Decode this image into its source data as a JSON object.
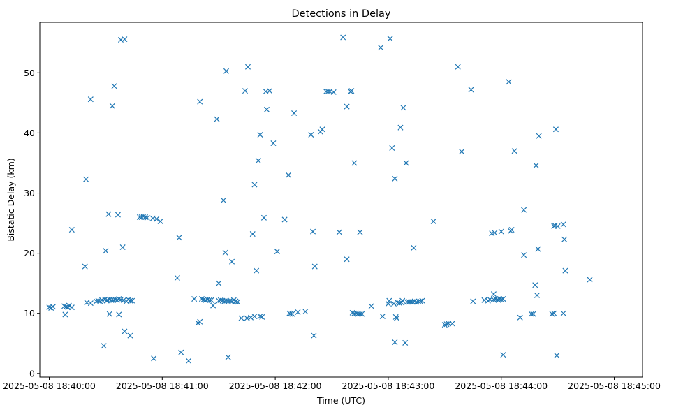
{
  "chart_data": {
    "type": "scatter",
    "title": "Detections in Delay",
    "xlabel": "Time (UTC)",
    "ylabel": "Bistatic Delay (km)",
    "marker": "x",
    "color": "#1f77b4",
    "grid": false,
    "x_unit": "seconds after 2025-05-08 18:40:00 UTC",
    "xlim": [
      -5,
      315
    ],
    "ylim": [
      -0.6,
      58.4
    ],
    "x_ticks": [
      {
        "value": 0,
        "label": "2025-05-08 18:40:00"
      },
      {
        "value": 60,
        "label": "2025-05-08 18:41:00"
      },
      {
        "value": 120,
        "label": "2025-05-08 18:42:00"
      },
      {
        "value": 180,
        "label": "2025-05-08 18:43:00"
      },
      {
        "value": 240,
        "label": "2025-05-08 18:44:00"
      },
      {
        "value": 300,
        "label": "2025-05-08 18:45:00"
      }
    ],
    "y_ticks": [
      {
        "value": 0,
        "label": "0"
      },
      {
        "value": 10,
        "label": "10"
      },
      {
        "value": 20,
        "label": "20"
      },
      {
        "value": 30,
        "label": "30"
      },
      {
        "value": 40,
        "label": "40"
      },
      {
        "value": 50,
        "label": "50"
      }
    ],
    "points": [
      [
        0,
        11.0
      ],
      [
        1,
        10.9
      ],
      [
        2,
        11.1
      ],
      [
        8,
        11.2
      ],
      [
        8.5,
        9.8
      ],
      [
        9,
        11.1
      ],
      [
        10,
        11.0
      ],
      [
        10.5,
        11.3
      ],
      [
        12,
        11.0
      ],
      [
        12,
        23.9
      ],
      [
        19,
        17.8
      ],
      [
        19.5,
        32.3
      ],
      [
        20,
        11.8
      ],
      [
        22,
        11.7
      ],
      [
        22,
        45.6
      ],
      [
        25,
        12.0
      ],
      [
        26,
        12.1
      ],
      [
        27,
        12.0
      ],
      [
        28,
        12.2
      ],
      [
        29,
        4.6
      ],
      [
        29.5,
        12.3
      ],
      [
        30,
        20.4
      ],
      [
        30.5,
        12.1
      ],
      [
        31,
        12.2
      ],
      [
        31.5,
        26.5
      ],
      [
        32,
        9.9
      ],
      [
        32,
        12.3
      ],
      [
        33,
        12.2
      ],
      [
        33.5,
        44.5
      ],
      [
        34,
        12.2
      ],
      [
        34.5,
        47.8
      ],
      [
        35,
        12.3
      ],
      [
        36,
        12.2
      ],
      [
        36.5,
        26.4
      ],
      [
        37,
        9.8
      ],
      [
        37,
        12.4
      ],
      [
        38,
        12.3
      ],
      [
        38,
        55.5
      ],
      [
        39,
        21.0
      ],
      [
        39.5,
        12.2
      ],
      [
        40,
        7.0
      ],
      [
        40,
        55.6
      ],
      [
        41,
        12.0
      ],
      [
        42,
        12.3
      ],
      [
        43,
        12.1
      ],
      [
        43,
        6.3
      ],
      [
        44,
        12.1
      ],
      [
        48,
        26.0
      ],
      [
        49,
        26.0
      ],
      [
        50,
        26.1
      ],
      [
        51,
        26.0
      ],
      [
        52,
        25.9
      ],
      [
        55,
        25.8
      ],
      [
        55.5,
        2.5
      ],
      [
        57,
        25.7
      ],
      [
        59,
        25.3
      ],
      [
        68,
        15.9
      ],
      [
        69,
        22.6
      ],
      [
        70,
        3.5
      ],
      [
        74,
        2.1
      ],
      [
        77,
        12.4
      ],
      [
        79,
        8.4
      ],
      [
        80,
        8.6
      ],
      [
        80,
        45.2
      ],
      [
        81,
        12.4
      ],
      [
        82,
        12.3
      ],
      [
        83,
        12.2
      ],
      [
        84,
        12.3
      ],
      [
        85,
        12.2
      ],
      [
        86,
        12.2
      ],
      [
        87,
        11.3
      ],
      [
        89,
        42.3
      ],
      [
        90,
        12.1
      ],
      [
        90,
        15.0
      ],
      [
        91,
        12.2
      ],
      [
        92,
        12.1
      ],
      [
        92.5,
        28.8
      ],
      [
        93,
        12.0
      ],
      [
        93.5,
        20.1
      ],
      [
        94,
        12.1
      ],
      [
        94,
        50.3
      ],
      [
        95,
        12.0
      ],
      [
        95,
        2.7
      ],
      [
        96,
        12.1
      ],
      [
        97,
        12.0
      ],
      [
        97,
        18.6
      ],
      [
        98,
        12.2
      ],
      [
        99,
        12.0
      ],
      [
        100,
        11.9
      ],
      [
        102,
        9.2
      ],
      [
        104,
        47.0
      ],
      [
        105,
        9.2
      ],
      [
        105.5,
        51.0
      ],
      [
        107,
        9.3
      ],
      [
        108,
        23.2
      ],
      [
        109,
        9.5
      ],
      [
        109,
        31.4
      ],
      [
        110,
        17.1
      ],
      [
        111,
        35.4
      ],
      [
        112,
        9.5
      ],
      [
        112,
        39.7
      ],
      [
        113,
        9.4
      ],
      [
        114,
        25.9
      ],
      [
        115,
        46.9
      ],
      [
        115.5,
        43.9
      ],
      [
        117,
        47.0
      ],
      [
        119,
        38.3
      ],
      [
        121,
        20.3
      ],
      [
        125,
        25.6
      ],
      [
        127,
        33.0
      ],
      [
        127.5,
        10.0
      ],
      [
        128,
        9.9
      ],
      [
        129,
        9.9
      ],
      [
        130,
        43.3
      ],
      [
        132,
        10.2
      ],
      [
        136,
        10.3
      ],
      [
        139,
        39.7
      ],
      [
        140,
        23.6
      ],
      [
        140.5,
        6.3
      ],
      [
        141,
        17.8
      ],
      [
        144,
        40.2
      ],
      [
        145,
        40.6
      ],
      [
        147,
        46.9
      ],
      [
        148,
        46.9
      ],
      [
        149,
        46.9
      ],
      [
        151,
        46.8
      ],
      [
        154,
        23.5
      ],
      [
        156,
        55.9
      ],
      [
        158,
        44.4
      ],
      [
        158,
        19.0
      ],
      [
        160,
        46.9
      ],
      [
        160.5,
        47.0
      ],
      [
        161,
        10.1
      ],
      [
        162,
        35.0
      ],
      [
        162,
        10.0
      ],
      [
        163,
        10.0
      ],
      [
        164,
        9.9
      ],
      [
        165,
        9.9
      ],
      [
        165,
        23.5
      ],
      [
        166,
        9.9
      ],
      [
        171,
        11.2
      ],
      [
        176,
        54.2
      ],
      [
        177,
        9.5
      ],
      [
        180,
        11.6
      ],
      [
        180.5,
        12.1
      ],
      [
        181,
        55.7
      ],
      [
        182,
        37.5
      ],
      [
        183,
        11.6
      ],
      [
        183.5,
        5.2
      ],
      [
        183.5,
        32.4
      ],
      [
        184,
        9.4
      ],
      [
        184.5,
        9.2
      ],
      [
        185,
        11.8
      ],
      [
        186,
        11.7
      ],
      [
        186.5,
        40.9
      ],
      [
        187,
        11.8
      ],
      [
        187.5,
        12.1
      ],
      [
        188,
        44.2
      ],
      [
        189,
        5.1
      ],
      [
        189.5,
        35.0
      ],
      [
        190,
        11.9
      ],
      [
        191,
        11.9
      ],
      [
        192,
        11.9
      ],
      [
        193,
        11.9
      ],
      [
        193.5,
        20.9
      ],
      [
        194,
        12.0
      ],
      [
        195,
        11.9
      ],
      [
        196,
        12.0
      ],
      [
        197,
        12.0
      ],
      [
        198,
        12.1
      ],
      [
        204,
        25.3
      ],
      [
        210,
        8.1
      ],
      [
        211,
        8.2
      ],
      [
        212,
        8.3
      ],
      [
        214,
        8.3
      ],
      [
        217,
        51.0
      ],
      [
        219,
        36.9
      ],
      [
        224,
        47.2
      ],
      [
        225,
        12.0
      ],
      [
        231,
        12.2
      ],
      [
        233,
        12.1
      ],
      [
        234,
        12.3
      ],
      [
        235,
        23.3
      ],
      [
        236,
        12.3
      ],
      [
        236,
        13.2
      ],
      [
        236.5,
        23.4
      ],
      [
        237,
        12.4
      ],
      [
        238,
        12.3
      ],
      [
        238.5,
        12.2
      ],
      [
        239,
        12.4
      ],
      [
        240,
        23.6
      ],
      [
        240,
        12.3
      ],
      [
        241,
        3.1
      ],
      [
        241,
        12.4
      ],
      [
        244,
        48.5
      ],
      [
        245,
        23.7
      ],
      [
        245.5,
        23.9
      ],
      [
        247,
        37.0
      ],
      [
        250,
        9.3
      ],
      [
        252,
        27.2
      ],
      [
        252,
        19.7
      ],
      [
        256,
        9.9
      ],
      [
        257,
        9.9
      ],
      [
        258,
        14.7
      ],
      [
        258.5,
        34.6
      ],
      [
        259,
        13.0
      ],
      [
        259.5,
        20.7
      ],
      [
        260,
        39.5
      ],
      [
        267,
        9.9
      ],
      [
        268,
        10.0
      ],
      [
        268,
        24.5
      ],
      [
        268.5,
        24.6
      ],
      [
        269,
        40.6
      ],
      [
        269.5,
        3.0
      ],
      [
        270,
        24.5
      ],
      [
        273,
        10.0
      ],
      [
        273,
        24.8
      ],
      [
        273.5,
        22.3
      ],
      [
        274,
        17.1
      ],
      [
        287,
        15.6
      ]
    ]
  }
}
